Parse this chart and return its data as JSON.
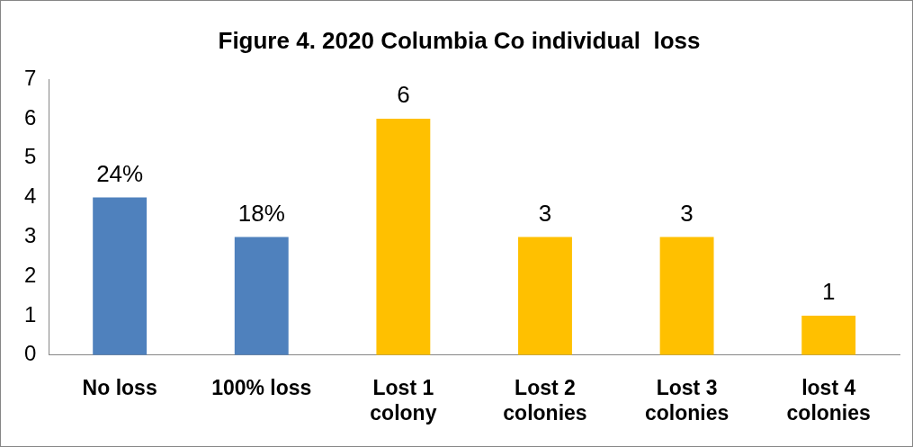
{
  "chart_data": {
    "type": "bar",
    "title": "Figure 4. 2020 Columbia Co individual  loss",
    "categories": [
      "No loss",
      "100% loss",
      "Lost 1 colony",
      "Lost 2 colonies",
      "Lost 3 colonies",
      "lost 4 colonies"
    ],
    "values": [
      4,
      3,
      6,
      3,
      3,
      1
    ],
    "colors": [
      "#4f81bd",
      "#4f81bd",
      "#ffc000",
      "#ffc000",
      "#ffc000",
      "#ffc000"
    ],
    "value_labels": [
      null,
      null,
      "6",
      "3",
      "3",
      "1"
    ],
    "annotations": [
      {
        "text": "24%",
        "x": "No loss",
        "y": 4
      },
      {
        "text": "18%",
        "x": "100% loss",
        "y": 3
      }
    ],
    "ylim": [
      0,
      7
    ],
    "yticks": [
      0,
      1,
      2,
      3,
      4,
      5,
      6,
      7
    ],
    "grid": false,
    "legend": false
  }
}
